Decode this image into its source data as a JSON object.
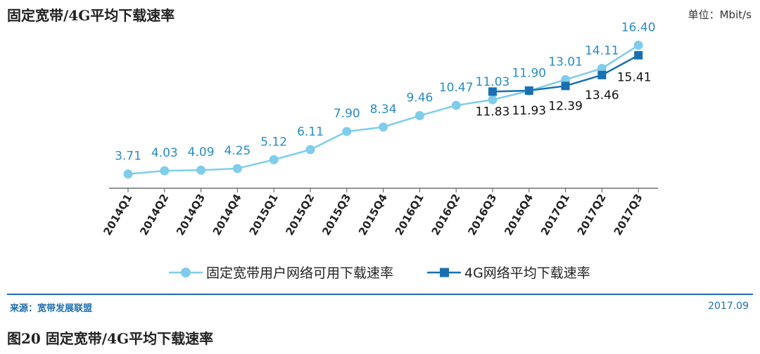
{
  "header": {
    "title": "固定宽带/4G平均下载速率",
    "unit": "单位：Mbit/s"
  },
  "footer": {
    "source": "来源：宽带发展联盟",
    "date": "2017.09",
    "caption": "图20  固定宽带/4G平均下载速率"
  },
  "colors": {
    "broadband": "#7fcdea",
    "lte": "#1a6fb0",
    "broadband_label": "#2a8cc4",
    "lte_label": "#111111",
    "axis": "#555555",
    "rule": "#1f6fae"
  },
  "chart_data": {
    "type": "line",
    "title": "固定宽带/4G平均下载速率",
    "xlabel": "",
    "ylabel": "单位：Mbit/s",
    "categories": [
      "2014Q1",
      "2014Q2",
      "2014Q3",
      "2014Q4",
      "2015Q1",
      "2015Q2",
      "2015Q3",
      "2015Q4",
      "2016Q1",
      "2016Q2",
      "2016Q3",
      "2016Q4",
      "2017Q1",
      "2017Q2",
      "2017Q3"
    ],
    "series": [
      {
        "name": "固定宽带用户网络可用下载速率",
        "marker": "circle",
        "values": [
          3.71,
          4.03,
          4.09,
          4.25,
          5.12,
          6.11,
          7.9,
          8.34,
          9.46,
          10.47,
          11.03,
          11.9,
          13.01,
          14.11,
          16.4
        ]
      },
      {
        "name": "4G网络平均下载速率",
        "marker": "square",
        "values": [
          null,
          null,
          null,
          null,
          null,
          null,
          null,
          null,
          null,
          null,
          11.83,
          11.93,
          12.39,
          13.46,
          15.41
        ]
      }
    ],
    "legend_position": "bottom",
    "grid": false
  }
}
